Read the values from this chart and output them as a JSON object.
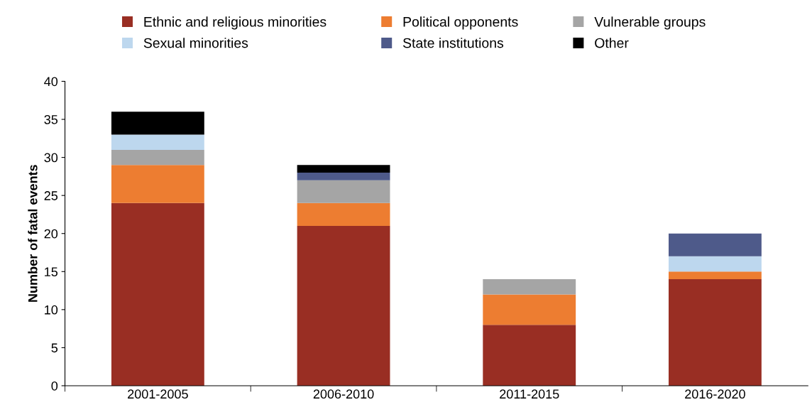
{
  "chart_data": {
    "type": "bar",
    "stacked": true,
    "ylabel": "Number of fatal events",
    "categories": [
      "2001-2005",
      "2006-2010",
      "2011-2015",
      "2016-2020"
    ],
    "series": [
      {
        "name": "Ethnic and religious minorities",
        "color": "#992e23",
        "values": [
          24,
          21,
          8,
          14
        ]
      },
      {
        "name": "Political opponents",
        "color": "#ed7d31",
        "values": [
          5,
          3,
          4,
          1
        ]
      },
      {
        "name": "Vulnerable groups",
        "color": "#a5a5a5",
        "values": [
          2,
          3,
          2,
          0
        ]
      },
      {
        "name": "Sexual minorities",
        "color": "#bdd7ee",
        "values": [
          2,
          0,
          0,
          2
        ]
      },
      {
        "name": "State institutions",
        "color": "#4e5a8a",
        "values": [
          0,
          1,
          0,
          3
        ]
      },
      {
        "name": "Other",
        "color": "#000000",
        "values": [
          3,
          1,
          0,
          0
        ]
      }
    ],
    "ylim": [
      0,
      40
    ],
    "yticks": [
      0,
      5,
      10,
      15,
      20,
      25,
      30,
      35,
      40
    ],
    "grid": false,
    "legend": "top"
  }
}
